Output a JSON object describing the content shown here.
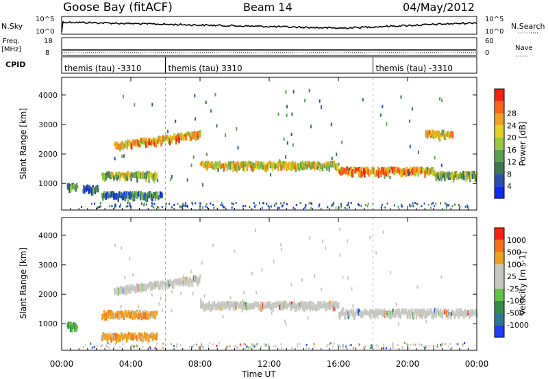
{
  "header": {
    "station": "Goose Bay (fitACF)",
    "beam": "Beam 14",
    "date": "04/May/2012"
  },
  "top_panels": {
    "nsky_label": "N.Sky",
    "nsky_ticks": [
      "10^5",
      "10^0"
    ],
    "nsearch_label": "N.Search",
    "nsearch_ticks": [
      "10^5",
      "10^0"
    ],
    "freq_label": "Freq.",
    "freq_unit": "[MHz]",
    "freq_ticks": [
      "18",
      "8"
    ],
    "nave_label": "Nave",
    "nave_ticks": [
      "60",
      "0"
    ],
    "cpid_label": "CPID",
    "cpid_segments": [
      {
        "start": 0.0,
        "end": 6.0,
        "label": "themis (tau) -3310"
      },
      {
        "start": 6.0,
        "end": 18.0,
        "label": "themis (tau) 3310"
      },
      {
        "start": 18.0,
        "end": 24.0,
        "label": "themis (tau) -3310"
      }
    ]
  },
  "chart_data": [
    {
      "type": "heatmap",
      "name": "power",
      "ylabel": "Slant Range [km]",
      "ylim": [
        100,
        4600
      ],
      "yticks": [
        "1000",
        "2000",
        "3000",
        "4000"
      ],
      "colorbar_label": "Power [dB]",
      "colorbar_ticks": [
        "4",
        "8",
        "12",
        "16",
        "20",
        "24",
        "28"
      ],
      "colorbar_colors": [
        "#0a28ff",
        "#2850b4",
        "#3c7850",
        "#5aa050",
        "#96c83c",
        "#e6d21e",
        "#f0a01e",
        "#ff6414",
        "#ff1e0a"
      ],
      "echo_bands": [
        {
          "start": 0.3,
          "end": 0.9,
          "range": 980,
          "intensity": 0.3
        },
        {
          "start": 1.2,
          "end": 2.1,
          "range": 900,
          "intensity": 0.25
        },
        {
          "start": 2.3,
          "end": 5.8,
          "range": 680,
          "intensity": 0.25
        },
        {
          "start": 2.3,
          "end": 5.5,
          "range": 1350,
          "intensity": 0.5
        },
        {
          "start": 3.0,
          "end": 8.0,
          "range": 2350,
          "intensity": 0.7
        },
        {
          "start": 8.0,
          "end": 16.0,
          "range": 1700,
          "intensity": 0.6
        },
        {
          "start": 16.0,
          "end": 21.5,
          "range": 1500,
          "intensity": 0.75
        },
        {
          "start": 21.5,
          "end": 24.0,
          "range": 1350,
          "intensity": 0.45
        },
        {
          "start": 21.0,
          "end": 22.6,
          "range": 2750,
          "intensity": 0.65
        }
      ]
    },
    {
      "type": "heatmap",
      "name": "velocity",
      "ylabel": "Slant Range [km]",
      "ylim": [
        100,
        4600
      ],
      "yticks": [
        "1000",
        "2000",
        "3000",
        "4000"
      ],
      "colorbar_label": "Velocity [m s-1]",
      "colorbar_ticks": [
        "1000",
        "500",
        "100",
        "25",
        "-25",
        "-100",
        "-500",
        "-1000"
      ],
      "colorbar_colors": [
        "#1e3cff",
        "#2d7896",
        "#328c46",
        "#5ac83c",
        "#c8c8c3",
        "#c8c8c3",
        "#f0a01e",
        "#ff6e14",
        "#ff1e0a"
      ],
      "echo_bands": [
        {
          "start": 0.3,
          "end": 0.9,
          "range": 1000,
          "tone": "green"
        },
        {
          "start": 2.3,
          "end": 5.5,
          "range": 1400,
          "tone": "orange"
        },
        {
          "start": 2.3,
          "end": 5.5,
          "range": 650,
          "tone": "orange"
        },
        {
          "start": 3.0,
          "end": 8.0,
          "range": 2200,
          "tone": "grey"
        },
        {
          "start": 8.0,
          "end": 16.0,
          "range": 1700,
          "tone": "grey"
        },
        {
          "start": 16.0,
          "end": 24.0,
          "range": 1450,
          "tone": "grey"
        }
      ]
    }
  ],
  "xaxis": {
    "xlim": [
      0,
      24
    ],
    "tick_labels": [
      "00:00",
      "04:00",
      "08:00",
      "12:00",
      "16:00",
      "20:00",
      "00:00"
    ],
    "label": "Time UT"
  }
}
